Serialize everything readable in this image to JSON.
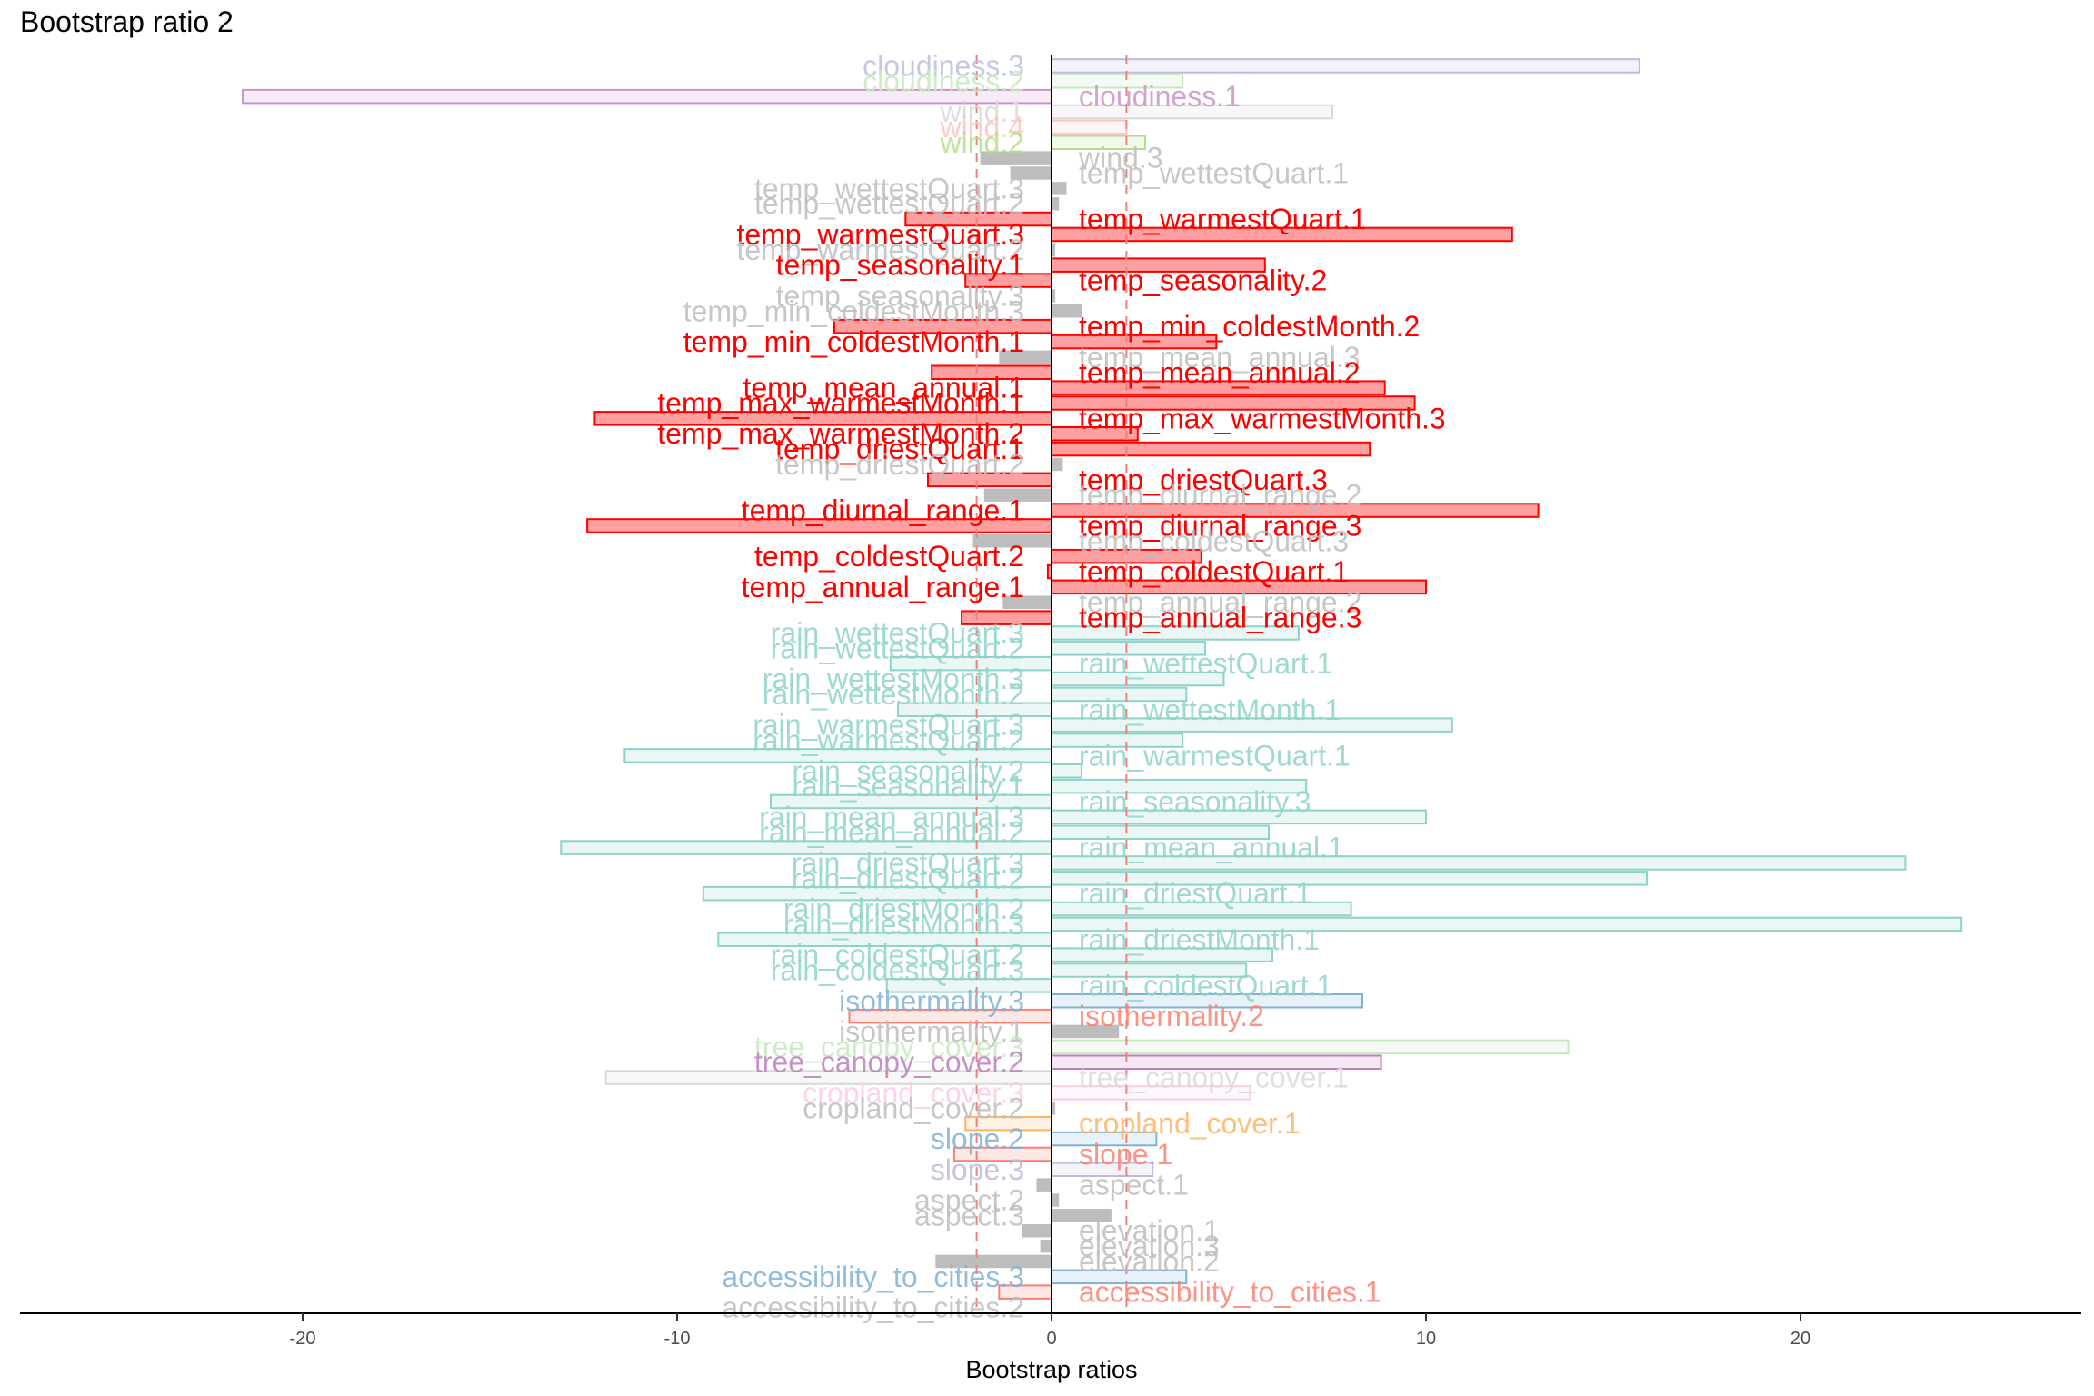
{
  "chart_data": {
    "type": "bar",
    "orientation": "horizontal",
    "title": "Bootstrap ratio 2",
    "xlabel": "Bootstrap ratios",
    "ylabel": "",
    "xlim": [
      -27.5,
      27.5
    ],
    "xticks": [
      -20,
      -10,
      0,
      10,
      20
    ],
    "xtick_labels": [
      "-20",
      "-10",
      "0",
      "10",
      "20"
    ],
    "threshold_lines": [
      -2,
      2
    ],
    "grid": false,
    "legend": "none",
    "colors": {
      "significant_fill": "#ff8080",
      "significant_outline": "#ff0000",
      "nonsignificant": "#bdbdbd",
      "threshold": "#f08080",
      "axis": "#000000"
    },
    "categories": [
      "cloudiness.3",
      "cloudiness.2",
      "cloudiness.1",
      "wind.1",
      "wind.4",
      "wind.2",
      "wind.3",
      "temp_wettestQuart.1",
      "temp_wettestQuart.3",
      "temp_wettestQuart.2",
      "temp_warmestQuart.1",
      "temp_warmestQuart.3",
      "temp_warmestQuart.2",
      "temp_seasonality.1",
      "temp_seasonality.2",
      "temp_seasonality.3",
      "temp_min_coldestMonth.3",
      "temp_min_coldestMonth.2",
      "temp_min_coldestMonth.1",
      "temp_mean_annual.3",
      "temp_mean_annual.2",
      "temp_mean_annual.1",
      "temp_max_warmestMonth.1",
      "temp_max_warmestMonth.3",
      "temp_max_warmestMonth.2",
      "temp_driestQuart.1",
      "temp_driestQuart.2",
      "temp_driestQuart.3",
      "temp_diurnal_range.2",
      "temp_diurnal_range.1",
      "temp_diurnal_range.3",
      "temp_coldestQuart.3",
      "temp_coldestQuart.2",
      "temp_coldestQuart.1",
      "temp_annual_range.1",
      "temp_annual_range.2",
      "temp_annual_range.3",
      "rain_wettestQuart.3",
      "rain_wettestQuart.2",
      "rain_wettestQuart.1",
      "rain_wettestMonth.3",
      "rain_wettestMonth.2",
      "rain_wettestMonth.1",
      "rain_warmestQuart.3",
      "rain_warmestQuart.2",
      "rain_warmestQuart.1",
      "rain_seasonality.2",
      "rain_seasonality.1",
      "rain_seasonality.3",
      "rain_mean_annual.3",
      "rain_mean_annual.2",
      "rain_mean_annual.1",
      "rain_driestQuart.3",
      "rain_driestQuart.2",
      "rain_driestQuart.1",
      "rain_driestMonth.2",
      "rain_driestMonth.3",
      "rain_driestMonth.1",
      "rain_coldestQuart.2",
      "rain_coldestQuart.3",
      "rain_coldestQuart.1",
      "isothermality.3",
      "isothermality.2",
      "isothermality.1",
      "tree_canopy_cover.3",
      "tree_canopy_cover.2",
      "tree_canopy_cover.1",
      "cropland_cover.3",
      "cropland_cover.2",
      "cropland_cover.1",
      "slope.2",
      "slope.1",
      "slope.3",
      "aspect.1",
      "aspect.2",
      "aspect.3",
      "elevation.1",
      "elevation.3",
      "elevation.2",
      "accessibility_to_cities.3",
      "accessibility_to_cities.1",
      "accessibility_to_cities.2"
    ],
    "series": [
      {
        "values": [
          15.7,
          3.5,
          -21.6,
          7.5,
          2.0,
          2.5,
          -1.9,
          -1.1,
          0.4,
          0.2,
          -3.9,
          12.3,
          0.1,
          5.7,
          -2.3,
          0.1,
          0.8,
          -5.8,
          4.4,
          -1.4,
          -3.2,
          8.9,
          9.7,
          -12.2,
          2.3,
          8.5,
          0.3,
          -3.3,
          -1.8,
          13.0,
          -12.4,
          -2.1,
          4.0,
          -0.1,
          10.0,
          -1.3,
          -2.4,
          6.6,
          4.1,
          -4.3,
          4.6,
          3.6,
          -4.1,
          10.7,
          3.5,
          -11.4,
          0.8,
          6.8,
          -7.5,
          10.0,
          5.8,
          -13.1,
          22.8,
          15.9,
          -9.3,
          8.0,
          24.3,
          -8.9,
          5.9,
          5.2,
          -4.4,
          8.3,
          -5.4,
          1.8,
          13.8,
          8.8,
          -11.9,
          5.3,
          0.1,
          -2.3,
          2.8,
          -2.6,
          2.7,
          -0.4,
          0.2,
          1.6,
          -0.8,
          -0.3,
          -3.1,
          3.6,
          -1.4,
          0.0
        ],
        "colors": [
          "#bcbddc",
          "#c7e9c0",
          "#c994c7",
          "#d9d9d9",
          "#fcc5c0",
          "#b2df8a",
          "#bdbdbd",
          "#bdbdbd",
          "#bdbdbd",
          "#bdbdbd",
          "#ff0000",
          "#ff0000",
          "#bdbdbd",
          "#ff0000",
          "#ff0000",
          "#bdbdbd",
          "#bdbdbd",
          "#ff0000",
          "#ff0000",
          "#bdbdbd",
          "#ff0000",
          "#ff0000",
          "#ff0000",
          "#ff0000",
          "#ff0000",
          "#ff0000",
          "#bdbdbd",
          "#ff0000",
          "#bdbdbd",
          "#ff0000",
          "#ff0000",
          "#bdbdbd",
          "#ff0000",
          "#ff0000",
          "#ff0000",
          "#bdbdbd",
          "#ff0000",
          "#8dd3c7",
          "#8dd3c7",
          "#8dd3c7",
          "#8dd3c7",
          "#8dd3c7",
          "#8dd3c7",
          "#8dd3c7",
          "#8dd3c7",
          "#8dd3c7",
          "#8dd3c7",
          "#8dd3c7",
          "#8dd3c7",
          "#8dd3c7",
          "#8dd3c7",
          "#8dd3c7",
          "#8dd3c7",
          "#8dd3c7",
          "#8dd3c7",
          "#8dd3c7",
          "#8dd3c7",
          "#8dd3c7",
          "#8dd3c7",
          "#8dd3c7",
          "#8dd3c7",
          "#80b1d3",
          "#fb8072",
          "#bdbdbd",
          "#c7e9c0",
          "#bc80bd",
          "#d9d9d9",
          "#fccde5",
          "#bdbdbd",
          "#fdb462",
          "#80b1d3",
          "#fb8072",
          "#bebada",
          "#bdbdbd",
          "#bdbdbd",
          "#bdbdbd",
          "#bdbdbd",
          "#bdbdbd",
          "#bdbdbd",
          "#80b1d3",
          "#fb8072",
          "#bdbdbd"
        ]
      }
    ]
  }
}
